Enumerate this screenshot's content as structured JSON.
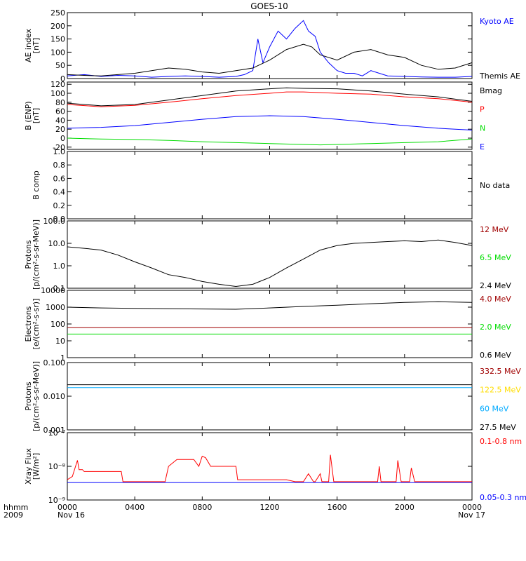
{
  "title": "GOES-10",
  "colors": {
    "black": "#000000",
    "blue": "#0000ff",
    "red": "#ff0000",
    "green": "#00dd00",
    "darkred": "#a00000",
    "yellow": "#ffdd00",
    "cyan": "#00aaff"
  },
  "footer": {
    "hhmm_label": "hhmm",
    "year_label": "2009",
    "start_date": "Nov 16",
    "end_date": "Nov 17"
  },
  "chart_data": [
    {
      "id": "ae",
      "type": "line",
      "ylabel": [
        "AE index",
        "[nT]"
      ],
      "ylim": [
        0,
        250
      ],
      "yticks": [
        "0",
        "50",
        "100",
        "150",
        "200",
        "250"
      ],
      "ytick_values": [
        0,
        50,
        100,
        150,
        200,
        250
      ],
      "legend": [
        {
          "label": "Kyoto AE",
          "color": "#0000ff"
        },
        {
          "label": "Themis AE",
          "color": "#000000"
        }
      ],
      "series": [
        {
          "name": "Kyoto AE",
          "color": "#0000ff",
          "x": [
            0,
            1,
            2,
            3,
            4,
            5,
            6,
            7,
            8,
            9,
            10,
            10.5,
            11,
            11.3,
            11.6,
            12,
            12.5,
            13,
            13.5,
            14,
            14.3,
            14.7,
            15,
            15.5,
            16,
            16.5,
            17,
            17.5,
            18,
            18.5,
            19,
            20,
            21,
            22,
            23,
            24
          ],
          "y": [
            10,
            15,
            8,
            12,
            10,
            5,
            8,
            10,
            8,
            5,
            8,
            15,
            30,
            150,
            60,
            120,
            180,
            150,
            190,
            220,
            180,
            160,
            100,
            60,
            30,
            20,
            20,
            10,
            30,
            20,
            10,
            8,
            6,
            5,
            5,
            8
          ]
        },
        {
          "name": "Themis AE",
          "color": "#000000",
          "x": [
            0,
            1,
            2,
            3,
            4,
            5,
            6,
            7,
            8,
            9,
            10,
            11,
            12,
            13,
            14,
            14.5,
            15,
            16,
            17,
            18,
            19,
            20,
            21,
            22,
            23,
            24
          ],
          "y": [
            15,
            12,
            10,
            15,
            20,
            30,
            40,
            35,
            25,
            20,
            30,
            40,
            70,
            110,
            130,
            120,
            90,
            70,
            100,
            110,
            90,
            80,
            50,
            35,
            40,
            60
          ]
        }
      ]
    },
    {
      "id": "bfield",
      "type": "line",
      "ylabel": [
        "B (ENP)",
        "[nT]"
      ],
      "ylim": [
        -25,
        125
      ],
      "yticks": [
        "-20",
        "0",
        "20",
        "40",
        "60",
        "80",
        "100",
        "120"
      ],
      "ytick_values": [
        -20,
        0,
        20,
        40,
        60,
        80,
        100,
        120
      ],
      "legend": [
        {
          "label": "Bmag",
          "color": "#000000"
        },
        {
          "label": "P",
          "color": "#ff0000"
        },
        {
          "label": "N",
          "color": "#00dd00"
        },
        {
          "label": "E",
          "color": "#0000ff"
        }
      ],
      "series": [
        {
          "name": "Bmag",
          "color": "#000000",
          "x": [
            0,
            2,
            4,
            6,
            8,
            10,
            12,
            13,
            14,
            16,
            18,
            20,
            22,
            24
          ],
          "y": [
            78,
            72,
            75,
            85,
            95,
            105,
            110,
            112,
            111,
            110,
            105,
            98,
            92,
            82
          ]
        },
        {
          "name": "P",
          "color": "#ff0000",
          "x": [
            0,
            2,
            4,
            6,
            8,
            10,
            12,
            13,
            14,
            16,
            18,
            20,
            22,
            24
          ],
          "y": [
            75,
            70,
            73,
            80,
            88,
            95,
            100,
            103,
            103,
            100,
            98,
            92,
            88,
            80
          ]
        },
        {
          "name": "N",
          "color": "#00dd00",
          "x": [
            0,
            2,
            4,
            6,
            8,
            10,
            12,
            14,
            15,
            16,
            18,
            20,
            22,
            24
          ],
          "y": [
            0,
            -2,
            -3,
            -5,
            -8,
            -10,
            -12,
            -14,
            -15,
            -14,
            -12,
            -10,
            -8,
            -2
          ]
        },
        {
          "name": "E",
          "color": "#0000ff",
          "x": [
            0,
            2,
            4,
            6,
            8,
            10,
            12,
            14,
            16,
            18,
            20,
            22,
            24
          ],
          "y": [
            22,
            24,
            28,
            35,
            42,
            48,
            50,
            48,
            42,
            35,
            28,
            22,
            18
          ]
        }
      ]
    },
    {
      "id": "bcomp",
      "type": "line",
      "ylabel": [
        "B comp"
      ],
      "ylim": [
        0,
        1
      ],
      "yticks": [
        "0.0",
        "0.2",
        "0.4",
        "0.6",
        "0.8",
        "1.0"
      ],
      "ytick_values": [
        0,
        0.2,
        0.4,
        0.6,
        0.8,
        1.0
      ],
      "legend": [
        {
          "label": "No data",
          "color": "#000000"
        }
      ],
      "series": []
    },
    {
      "id": "protons",
      "type": "line",
      "log": true,
      "ylabel": [
        "Protons",
        "[p/(cm²-s-sr-MeV)]"
      ],
      "ylim": [
        0.1,
        100
      ],
      "yticks": [
        "0.1",
        "1.0",
        "10.0",
        "100.0"
      ],
      "ytick_values": [
        0.1,
        1,
        10,
        100
      ],
      "legend": [
        {
          "label": "12 MeV",
          "color": "#a00000"
        },
        {
          "label": "6.5 MeV",
          "color": "#00dd00"
        },
        {
          "label": "2.4 MeV",
          "color": "#000000"
        }
      ],
      "series": [
        {
          "name": "2.4 MeV",
          "color": "#000000",
          "x": [
            0,
            1,
            2,
            3,
            4,
            5,
            6,
            7,
            8,
            9,
            10,
            11,
            12,
            13,
            14,
            15,
            16,
            17,
            18,
            19,
            20,
            21,
            22,
            23,
            24
          ],
          "y": [
            7,
            6,
            5,
            3,
            1.5,
            0.8,
            0.4,
            0.3,
            0.2,
            0.15,
            0.12,
            0.15,
            0.3,
            0.8,
            2,
            5,
            8,
            10,
            11,
            12,
            13,
            12,
            14,
            11,
            8
          ]
        }
      ]
    },
    {
      "id": "electrons",
      "type": "line",
      "log": true,
      "ylabel": [
        "Electrons",
        "[e/(cm²-s-sr)]"
      ],
      "ylim": [
        1,
        10000
      ],
      "yticks": [
        "1",
        "10",
        "100",
        "1000",
        "10000"
      ],
      "ytick_values": [
        1,
        10,
        100,
        1000,
        10000
      ],
      "legend": [
        {
          "label": "4.0 MeV",
          "color": "#a00000"
        },
        {
          "label": "2.0 MeV",
          "color": "#00dd00"
        },
        {
          "label": "0.6 MeV",
          "color": "#000000"
        }
      ],
      "series": [
        {
          "name": "0.6 MeV",
          "color": "#000000",
          "x": [
            0,
            2,
            4,
            6,
            8,
            10,
            12,
            14,
            16,
            18,
            20,
            22,
            24
          ],
          "y": [
            1000,
            900,
            850,
            800,
            780,
            750,
            900,
            1100,
            1300,
            1600,
            1900,
            2100,
            1900
          ]
        },
        {
          "name": "4.0 MeV",
          "color": "#a00000",
          "x": [
            0,
            24
          ],
          "y": [
            60,
            60
          ]
        },
        {
          "name": "2.0 MeV",
          "color": "#00dd00",
          "x": [
            0,
            24
          ],
          "y": [
            25,
            25
          ]
        }
      ]
    },
    {
      "id": "hiprotons",
      "type": "line",
      "log": true,
      "ylabel": [
        "Protons",
        "[p/(cm²-s-sr-MeV)]"
      ],
      "ylim": [
        0.001,
        0.1
      ],
      "yticks": [
        "0.001",
        "0.010",
        "0.100"
      ],
      "ytick_values": [
        0.001,
        0.01,
        0.1
      ],
      "legend": [
        {
          "label": "332.5 MeV",
          "color": "#a00000"
        },
        {
          "label": "122.5 MeV",
          "color": "#ffdd00"
        },
        {
          "label": "60 MeV",
          "color": "#00aaff"
        },
        {
          "label": "27.5 MeV",
          "color": "#000000"
        }
      ],
      "series": [
        {
          "name": "27.5 MeV",
          "color": "#000000",
          "x": [
            0,
            24
          ],
          "y": [
            0.022,
            0.022
          ]
        },
        {
          "name": "60 MeV",
          "color": "#00aaff",
          "x": [
            0,
            24
          ],
          "y": [
            0.018,
            0.018
          ]
        }
      ]
    },
    {
      "id": "xray",
      "type": "line",
      "log": true,
      "ylabel": [
        "Xray Flux",
        "[W/m²]"
      ],
      "ylim": [
        1e-09,
        1e-07
      ],
      "yticks": [
        "10⁻⁹",
        "10⁻⁸",
        "10⁻⁷"
      ],
      "ytick_values": [
        1e-09,
        1e-08,
        1e-07
      ],
      "legend": [
        {
          "label": "0.1-0.8 nm",
          "color": "#ff0000"
        },
        {
          "label": "0.05-0.3 nm",
          "color": "#0000ff"
        }
      ],
      "series": [
        {
          "name": "0.1-0.8 nm",
          "color": "#ff0000",
          "x": [
            0,
            0.3,
            0.6,
            0.7,
            0.9,
            1,
            3.2,
            3.3,
            5.8,
            6,
            6.5,
            7.5,
            7.8,
            8,
            8.2,
            8.5,
            9,
            10,
            10.1,
            13,
            13.5,
            14,
            14.3,
            14.6,
            14.7,
            15,
            15.1,
            15.5,
            15.6,
            15.8,
            16,
            16.3,
            18.4,
            18.5,
            18.6,
            19.5,
            19.6,
            19.8,
            20.3,
            20.4,
            20.6,
            24
          ],
          "y": [
            4e-09,
            5e-09,
            1.5e-08,
            8e-09,
            8e-09,
            7e-09,
            7e-09,
            3.5e-09,
            3.5e-09,
            1e-08,
            1.6e-08,
            1.6e-08,
            1e-08,
            2e-08,
            1.8e-08,
            1e-08,
            1e-08,
            1e-08,
            4e-09,
            4e-09,
            3.5e-09,
            3.5e-09,
            6e-09,
            3.5e-09,
            3.5e-09,
            6e-09,
            3.5e-09,
            3.5e-09,
            2.2e-08,
            3.5e-09,
            3.5e-09,
            3.5e-09,
            3.5e-09,
            1e-08,
            3.5e-09,
            3.5e-09,
            1.5e-08,
            3.5e-09,
            3.5e-09,
            9e-09,
            3.5e-09,
            3.5e-09
          ]
        },
        {
          "name": "0.05-0.3 nm",
          "color": "#0000ff",
          "x": [
            0,
            24
          ],
          "y": [
            3.3e-09,
            3.3e-09
          ]
        }
      ]
    }
  ],
  "x_axis": {
    "ticks": [
      "0000",
      "0400",
      "0800",
      "1200",
      "1600",
      "2000",
      "0000"
    ],
    "tick_values": [
      0,
      4,
      8,
      12,
      16,
      20,
      24
    ],
    "xlim": [
      0,
      24
    ]
  }
}
